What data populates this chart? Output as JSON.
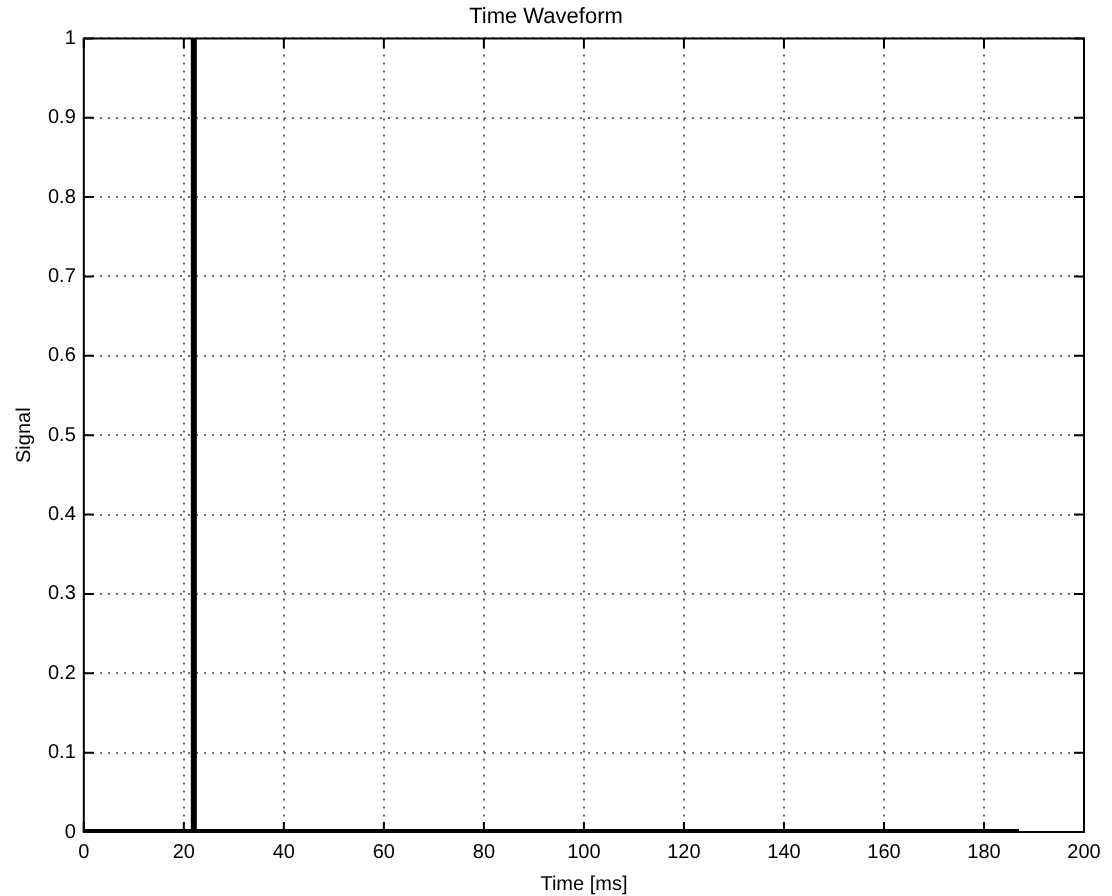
{
  "chart_data": {
    "type": "line",
    "title": "Time Waveform",
    "xlabel": "Time [ms]",
    "ylabel": "Signal",
    "x": [
      0,
      22,
      22,
      22,
      187
    ],
    "series": [
      {
        "color": "#000000",
        "values": [
          0,
          0,
          1,
          0,
          0
        ]
      }
    ],
    "xlim": [
      0,
      200
    ],
    "xticks": [
      0,
      20,
      40,
      60,
      80,
      100,
      120,
      140,
      160,
      180,
      200
    ],
    "ylim": [
      0,
      1
    ],
    "yticks": [
      0,
      0.1,
      0.2,
      0.3,
      0.4,
      0.5,
      0.6,
      0.7,
      0.8,
      0.9,
      1
    ],
    "grid": true,
    "legend": false,
    "marker": "none",
    "line_style": "solid"
  }
}
